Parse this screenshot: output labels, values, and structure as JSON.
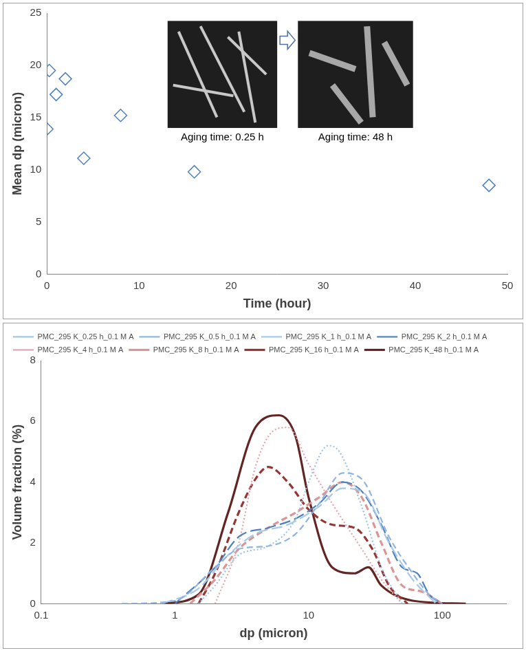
{
  "chart_data": [
    {
      "type": "scatter",
      "x_label": "Time (hour)",
      "y_label": "Mean dp (micron)",
      "x": [
        0,
        0.25,
        1,
        2,
        4,
        8,
        16,
        48
      ],
      "values": [
        13.9,
        19.5,
        17.2,
        18.7,
        11.1,
        15.2,
        9.8,
        8.5
      ],
      "color": "#4f81bd",
      "marker": "diamond",
      "xlim": [
        0,
        50
      ],
      "xticks": [
        0,
        10,
        20,
        30,
        40,
        50
      ],
      "ylim": [
        0,
        25
      ],
      "yticks": [
        0,
        5,
        10,
        15,
        20,
        25
      ],
      "grid": false,
      "annotations": [
        "Aging time: 0.25 h",
        "Aging time: 48 h"
      ]
    },
    {
      "type": "line",
      "x_label": "dp (micron)",
      "y_label": "Volume fraction (%)",
      "log": "x",
      "grid": false,
      "legend": "top",
      "xlim": [
        0.1,
        300
      ],
      "xticks": [
        0.1,
        1,
        10,
        100
      ],
      "ylim": [
        0,
        8
      ],
      "yticks": [
        0,
        2,
        4,
        6,
        8
      ],
      "series": [
        {
          "name": "PMC_295 K_0.25 h_0.1 M A",
          "color": "#9dc3e6",
          "line_style": "dotted",
          "x": [
            1.5,
            2,
            3,
            5,
            8,
            10,
            14,
            17,
            25,
            35,
            50
          ],
          "values": [
            0,
            0.6,
            1.6,
            1.9,
            2.8,
            4.0,
            5.2,
            5.0,
            3.2,
            1.2,
            0
          ]
        },
        {
          "name": "PMC_295 K_0.5 h_0.1 M A",
          "color": "#8eb4e3",
          "line_style": "dashed",
          "x": [
            0.4,
            1,
            2,
            3,
            5,
            8,
            12,
            18,
            25,
            40,
            60,
            80,
            100
          ],
          "values": [
            0,
            0.1,
            1.2,
            1.8,
            1.9,
            2.3,
            3.3,
            4.3,
            4.1,
            2.2,
            1.0,
            0.3,
            0
          ]
        },
        {
          "name": "PMC_295 K_1 h_0.1 M A",
          "color": "#a6c8ea",
          "line_style": "long_dash",
          "x": [
            0.8,
            1.5,
            2.5,
            4,
            7,
            12,
            18,
            25,
            40,
            60,
            90
          ],
          "values": [
            0,
            0.5,
            1.6,
            2.3,
            2.6,
            3.2,
            3.8,
            3.7,
            2.0,
            0.8,
            0
          ]
        },
        {
          "name": "PMC_295 K_2 h_0.1 M A",
          "color": "#4f81bd",
          "line_style": "long_dash",
          "x": [
            1,
            2,
            3,
            5,
            8,
            12,
            18,
            25,
            35,
            50,
            65,
            80,
            100
          ],
          "values": [
            0,
            1.2,
            2.2,
            2.5,
            2.8,
            3.3,
            4.0,
            3.7,
            2.6,
            1.2,
            1.0,
            0.3,
            0
          ]
        },
        {
          "name": "PMC_295 K_4 h_0.1 M A",
          "color": "#e6a3ab",
          "line_style": "dotted",
          "x": [
            2,
            3,
            4,
            5.5,
            7,
            10,
            15,
            25,
            35,
            50
          ],
          "values": [
            0,
            2.0,
            4.5,
            5.7,
            5.8,
            4.6,
            3.3,
            1.8,
            0.8,
            0
          ]
        },
        {
          "name": "PMC_295 K_8 h_0.1 M A",
          "color": "#d99694",
          "line_style": "dashed",
          "x": [
            1.3,
            2,
            3,
            5,
            8,
            12,
            18,
            25,
            35,
            50,
            70,
            100
          ],
          "values": [
            0,
            0.8,
            1.8,
            2.5,
            3.0,
            3.5,
            4.0,
            3.5,
            2.0,
            0.6,
            0.4,
            0
          ]
        },
        {
          "name": "PMC_295 K_16 h_0.1 M A",
          "color": "#943634",
          "line_style": "dashed",
          "x": [
            1.5,
            2,
            3,
            4,
            5,
            7,
            10,
            15,
            22,
            30,
            40,
            55
          ],
          "values": [
            0,
            1.0,
            3.0,
            4.1,
            4.5,
            4.0,
            3.1,
            2.6,
            2.5,
            1.8,
            0.6,
            0
          ]
        },
        {
          "name": "PMC_295 K_48 h_0.1 M A",
          "color": "#632523",
          "line_style": "solid",
          "x": [
            0.8,
            1.5,
            2.5,
            4,
            6,
            8,
            10,
            15,
            22,
            28,
            35,
            60,
            150
          ],
          "values": [
            0,
            0.3,
            3.0,
            5.8,
            6.2,
            5.5,
            3.5,
            1.2,
            1.0,
            1.2,
            0.6,
            0.1,
            0
          ]
        }
      ]
    }
  ]
}
